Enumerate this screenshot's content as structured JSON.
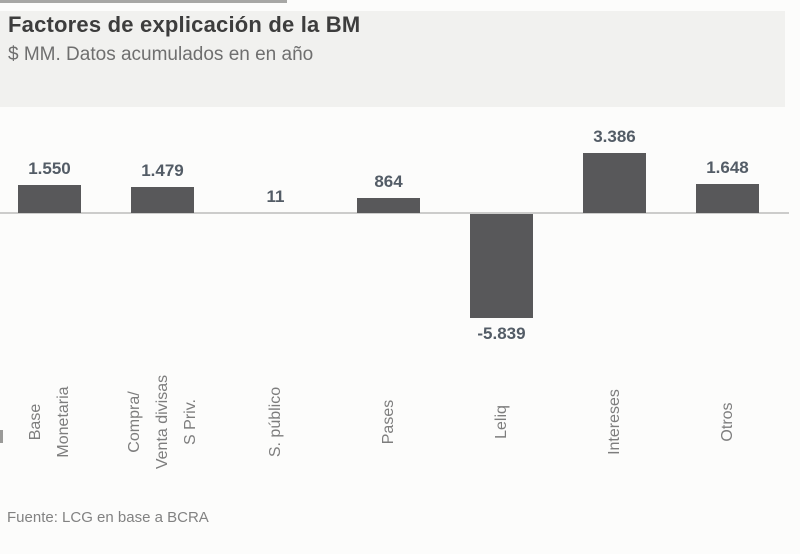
{
  "header": {
    "title": "Factores de explicación de la BM",
    "subtitle": "$ MM. Datos acumulados en en año"
  },
  "footer": {
    "source": "Fuente: LCG en base a BCRA"
  },
  "colors": {
    "bar": "#58585a",
    "header_band": "#f1f1ef",
    "axis_line": "#cccccb",
    "title_text": "#3d3d3d",
    "subtitle_text": "#6f6f6f",
    "value_label_text": "#535c66",
    "category_label_text": "#7d7d7d"
  },
  "chart_data": {
    "type": "bar",
    "title": "Factores de explicación de la BM",
    "subtitle": "$ MM. Datos acumulados en en año",
    "unit": "$ MM",
    "source": "Fuente: LCG en base a BCRA",
    "categories": [
      "Base Monetaria",
      "Compra/ Venta divisas S Priv.",
      "S. público",
      "Pases",
      "Leliq",
      "Intereses",
      "Otros"
    ],
    "category_lines": [
      [
        "Base",
        "Monetaria"
      ],
      [
        "Compra/",
        "Venta divisas",
        "S Priv."
      ],
      [
        "S. público"
      ],
      [
        "Pases"
      ],
      [
        "Leliq"
      ],
      [
        "Intereses"
      ],
      [
        "Otros"
      ]
    ],
    "values": [
      1550,
      1479,
      11,
      864,
      -5839,
      3386,
      1648
    ],
    "value_labels": [
      "1.550",
      "1.479",
      "11",
      "864",
      "-5.839",
      "3.386",
      "1.648"
    ],
    "xlabel": "",
    "ylabel": "",
    "ylim": [
      -5839,
      3386
    ],
    "grid": false,
    "legend": false,
    "orientation": "vertical",
    "data_labels": "outside-end",
    "category_labels_rotation": 90
  }
}
